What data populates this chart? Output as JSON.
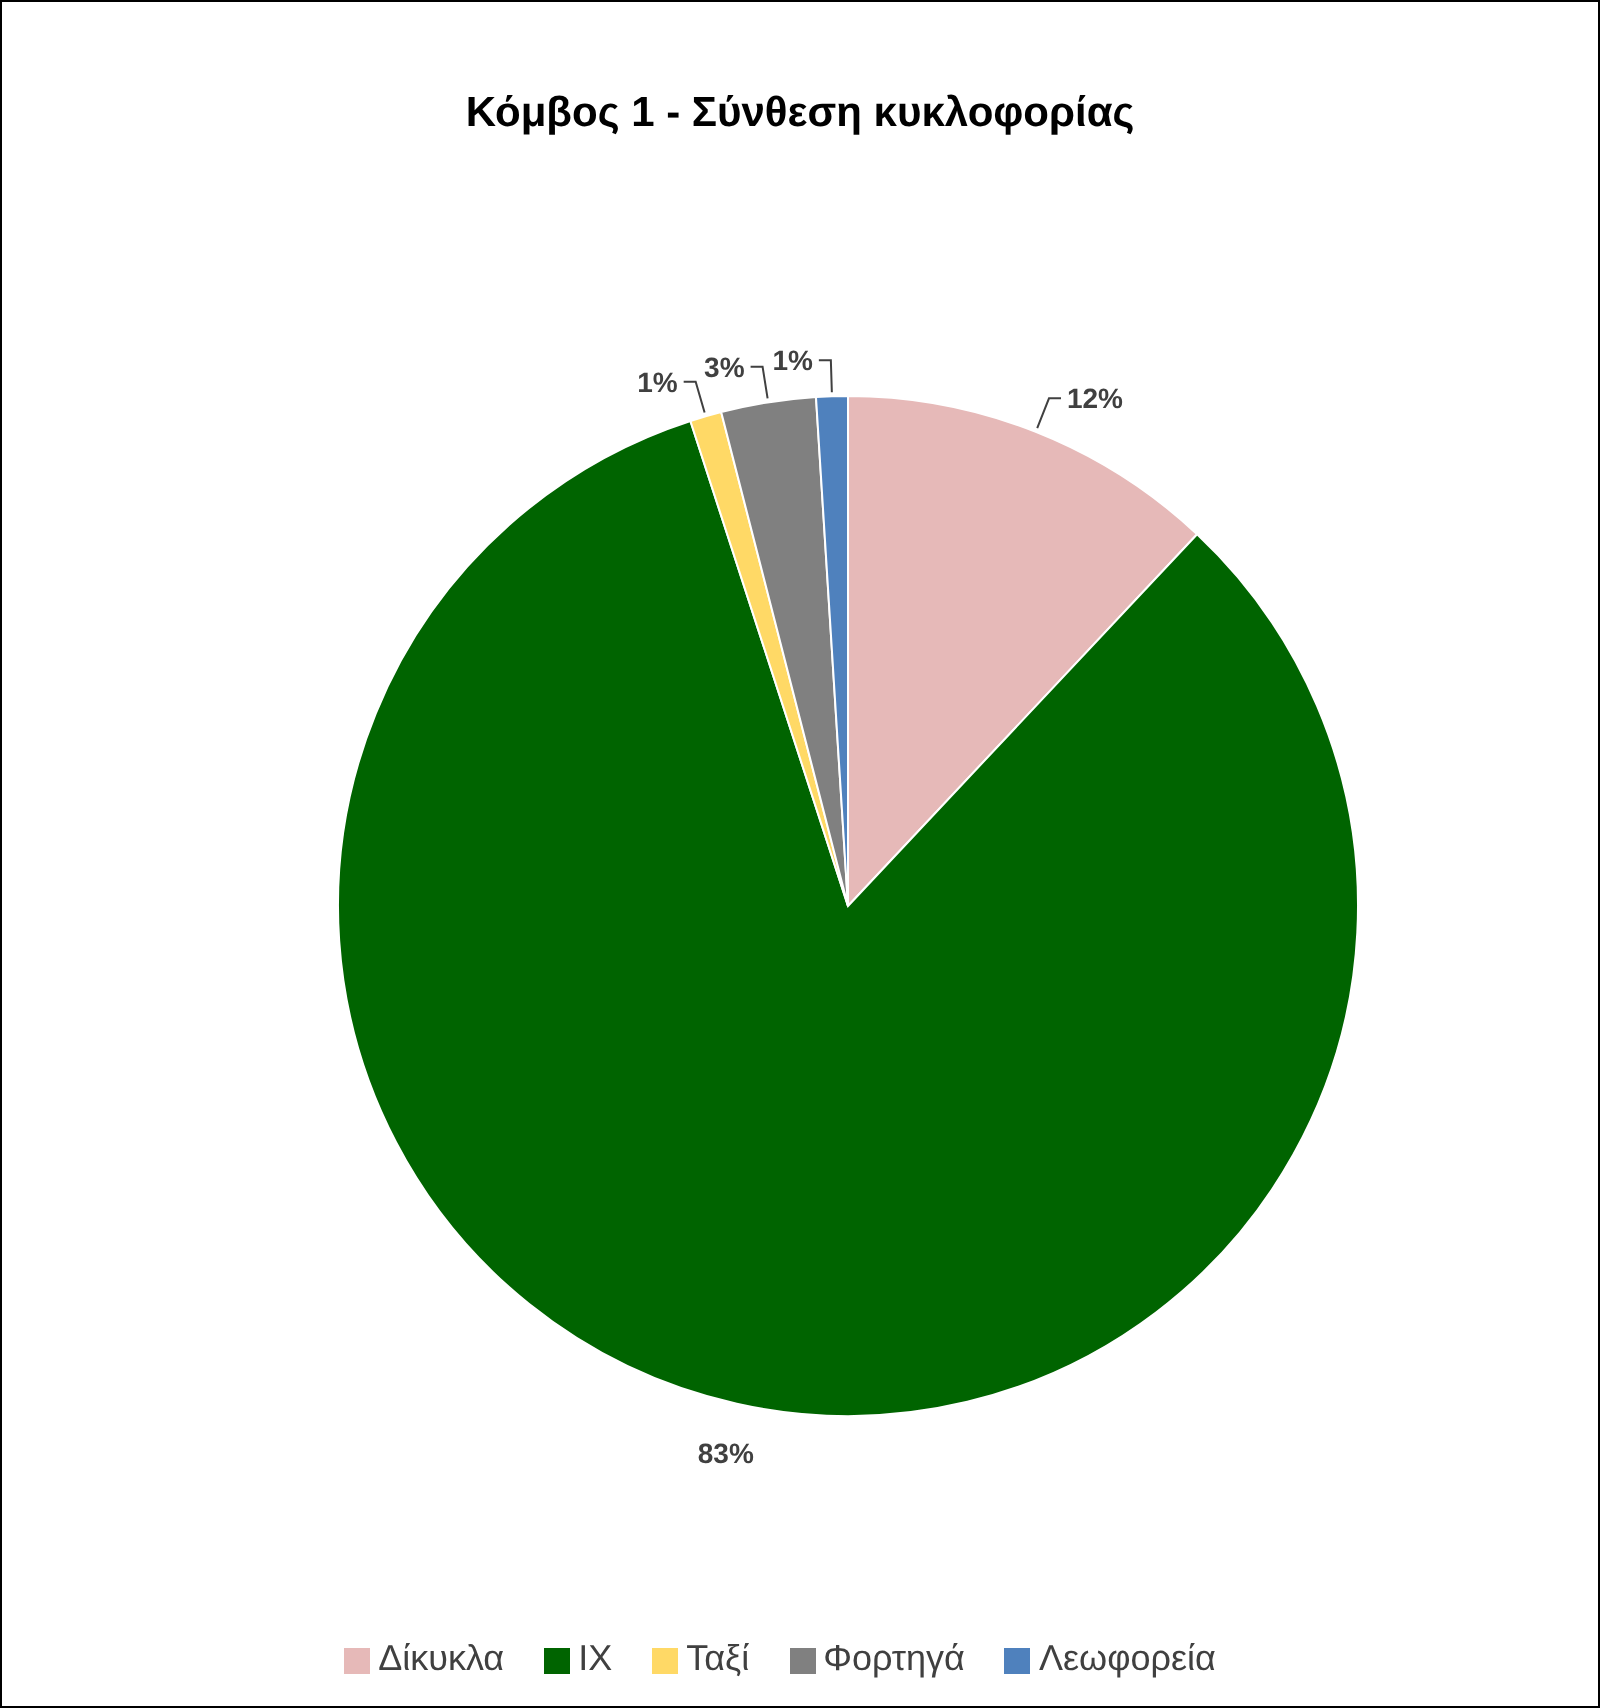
{
  "chart_data": {
    "type": "pie",
    "title": "Κόμβος 1 - Σύνθεση κυκλοφορίας",
    "categories": [
      "Δίκυκλα",
      "ΙΧ",
      "Ταξί",
      "Φορτηγά",
      "Λεωφορεία"
    ],
    "values": [
      12,
      83,
      1,
      3,
      1
    ],
    "value_labels": [
      "12%",
      "83%",
      "1%",
      "3%",
      "1%"
    ],
    "colors": [
      "#e6b9b8",
      "#006400",
      "#ffd966",
      "#808080",
      "#4f81bd"
    ],
    "legend": "bottom"
  }
}
